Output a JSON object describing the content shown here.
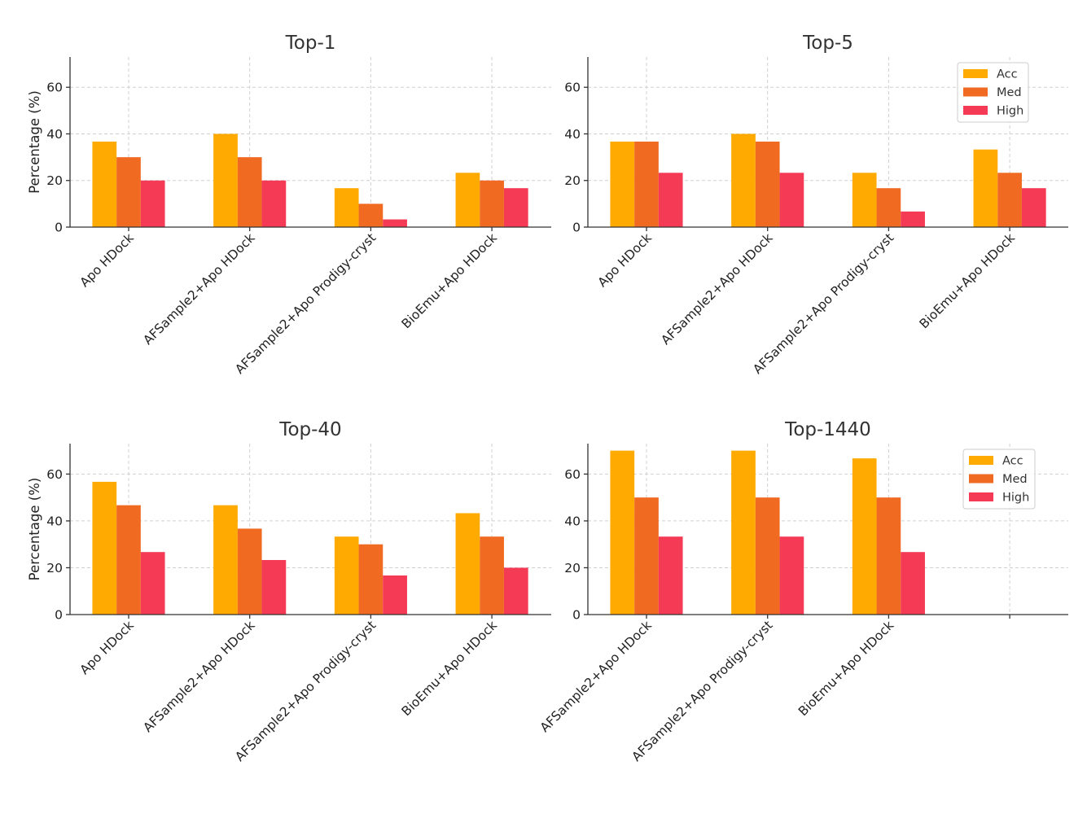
{
  "colors": {
    "Acc": "#FFAA00",
    "Med": "#F06A22",
    "High": "#F43A55"
  },
  "chart_data": [
    {
      "type": "bar",
      "title": "Top-1",
      "ylabel": "Percentage (%)",
      "ylim": [
        0,
        73
      ],
      "yticks": [
        0,
        20,
        40,
        60
      ],
      "grid": true,
      "legend": null,
      "categories": [
        "Apo HDock",
        "AFSample2+Apo HDock",
        "AFSample2+Apo Prodigy-cryst",
        "BioEmu+Apo HDock"
      ],
      "series": [
        {
          "name": "Acc",
          "values": [
            36.7,
            40.0,
            16.7,
            23.3
          ]
        },
        {
          "name": "Med",
          "values": [
            30.0,
            30.0,
            10.0,
            20.0
          ]
        },
        {
          "name": "High",
          "values": [
            20.0,
            20.0,
            3.3,
            16.7
          ]
        }
      ]
    },
    {
      "type": "bar",
      "title": "Top-5",
      "ylabel": "",
      "ylim": [
        0,
        73
      ],
      "yticks": [
        0,
        20,
        40,
        60
      ],
      "grid": true,
      "legend": "upper-right",
      "categories": [
        "Apo HDock",
        "AFSample2+Apo HDock",
        "AFSample2+Apo Prodigy-cryst",
        "BioEmu+Apo HDock"
      ],
      "series": [
        {
          "name": "Acc",
          "values": [
            36.7,
            40.0,
            23.3,
            33.3
          ]
        },
        {
          "name": "Med",
          "values": [
            36.7,
            36.7,
            16.7,
            23.3
          ]
        },
        {
          "name": "High",
          "values": [
            23.3,
            23.3,
            6.7,
            16.7
          ]
        }
      ]
    },
    {
      "type": "bar",
      "title": "Top-40",
      "ylabel": "Percentage (%)",
      "ylim": [
        0,
        73
      ],
      "yticks": [
        0,
        20,
        40,
        60
      ],
      "grid": true,
      "legend": null,
      "categories": [
        "Apo HDock",
        "AFSample2+Apo HDock",
        "AFSample2+Apo Prodigy-cryst",
        "BioEmu+Apo HDock"
      ],
      "series": [
        {
          "name": "Acc",
          "values": [
            56.7,
            46.7,
            33.3,
            43.3
          ]
        },
        {
          "name": "Med",
          "values": [
            46.7,
            36.7,
            30.0,
            33.3
          ]
        },
        {
          "name": "High",
          "values": [
            26.7,
            23.3,
            16.7,
            20.0
          ]
        }
      ]
    },
    {
      "type": "bar",
      "title": "Top-1440",
      "ylabel": "",
      "ylim": [
        0,
        73
      ],
      "yticks": [
        0,
        20,
        40,
        60
      ],
      "grid": true,
      "legend": "upper-right",
      "categories": [
        "AFSample2+Apo HDock",
        "AFSample2+Apo Prodigy-cryst",
        "BioEmu+Apo HDock",
        ""
      ],
      "series": [
        {
          "name": "Acc",
          "values": [
            70.0,
            70.0,
            66.7,
            0
          ]
        },
        {
          "name": "Med",
          "values": [
            50.0,
            50.0,
            50.0,
            0
          ]
        },
        {
          "name": "High",
          "values": [
            33.3,
            33.3,
            26.7,
            0
          ]
        }
      ]
    }
  ]
}
